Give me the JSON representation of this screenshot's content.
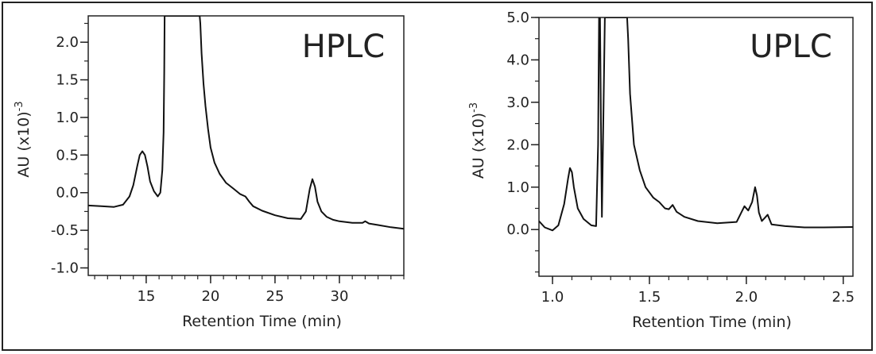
{
  "chart_data": [
    {
      "type": "line",
      "title": "HPLC",
      "xlabel": "Retention Time  (min)",
      "ylabel": "AU (x10)",
      "ylabel_sup": "-3",
      "xlim": [
        10.5,
        35
      ],
      "ylim": [
        -1.1,
        2.35
      ],
      "xticks": [
        15,
        20,
        25,
        30
      ],
      "xtick_labels": [
        "15",
        "20",
        "25",
        "30"
      ],
      "x_minor_step": 1,
      "yticks": [
        -1.0,
        -0.5,
        0.0,
        0.5,
        1.0,
        1.5,
        2.0
      ],
      "ytick_labels": [
        "-1.0",
        "-0.5",
        "0.0",
        "0.5",
        "1.0",
        "1.5",
        "2.0"
      ],
      "y_minor_step": 0.25,
      "grid": false,
      "series": [
        {
          "color": "#111111",
          "x": [
            10.5,
            11.5,
            12.5,
            13.2,
            13.7,
            14.0,
            14.3,
            14.5,
            14.7,
            14.9,
            15.1,
            15.3,
            15.6,
            15.9,
            16.1,
            16.25,
            16.35,
            16.4,
            16.43,
            16.47,
            16.5,
            16.8,
            17.5,
            18.2,
            18.9,
            19.15,
            19.2,
            19.3,
            19.45,
            19.6,
            19.8,
            20.0,
            20.3,
            20.7,
            21.2,
            21.8,
            22.3,
            22.7,
            23.0,
            23.3,
            24.0,
            25.0,
            26.0,
            27.0,
            27.4,
            27.7,
            27.9,
            28.1,
            28.3,
            28.6,
            29.0,
            29.5,
            30.0,
            31.0,
            31.8,
            32.0,
            32.3,
            33.0,
            34.0,
            35.0
          ],
          "y": [
            -0.17,
            -0.18,
            -0.19,
            -0.16,
            -0.05,
            0.1,
            0.35,
            0.5,
            0.55,
            0.5,
            0.35,
            0.15,
            0.02,
            -0.05,
            0.0,
            0.3,
            0.8,
            1.6,
            2.35,
            2.35,
            2.35,
            2.35,
            2.35,
            2.35,
            2.35,
            2.35,
            2.25,
            1.85,
            1.45,
            1.15,
            0.85,
            0.6,
            0.4,
            0.25,
            0.13,
            0.05,
            -0.02,
            -0.05,
            -0.12,
            -0.18,
            -0.24,
            -0.3,
            -0.34,
            -0.35,
            -0.25,
            0.05,
            0.18,
            0.08,
            -0.12,
            -0.25,
            -0.32,
            -0.36,
            -0.38,
            -0.4,
            -0.4,
            -0.38,
            -0.41,
            -0.43,
            -0.46,
            -0.48
          ]
        }
      ]
    },
    {
      "type": "line",
      "title": "UPLC",
      "xlabel": "Retention Time  (min)",
      "ylabel": "AU (x10)",
      "ylabel_sup": "-3",
      "xlim": [
        0.93,
        2.55
      ],
      "ylim": [
        -1.1,
        5.0
      ],
      "xticks": [
        1.0,
        1.5,
        2.0,
        2.5
      ],
      "xtick_labels": [
        "1.0",
        "1.5",
        "2.0",
        "2.5"
      ],
      "x_minor_step": 0.1,
      "yticks": [
        0.0,
        1.0,
        2.0,
        3.0,
        4.0,
        5.0
      ],
      "ytick_labels": [
        "0.0",
        "1.0",
        "2.0",
        "3.0",
        "4.0",
        "5.0"
      ],
      "y_minor_step": 0.5,
      "grid": false,
      "series": [
        {
          "color": "#111111",
          "x": [
            0.93,
            0.96,
            1.0,
            1.03,
            1.06,
            1.08,
            1.09,
            1.1,
            1.11,
            1.13,
            1.16,
            1.2,
            1.225,
            1.235,
            1.24,
            1.245,
            1.25,
            1.255,
            1.27,
            1.3,
            1.35,
            1.385,
            1.39,
            1.4,
            1.42,
            1.45,
            1.48,
            1.52,
            1.55,
            1.58,
            1.6,
            1.62,
            1.64,
            1.68,
            1.75,
            1.85,
            1.95,
            1.99,
            2.01,
            2.03,
            2.045,
            2.055,
            2.065,
            2.08,
            2.1,
            2.11,
            2.13,
            2.2,
            2.3,
            2.4,
            2.55
          ],
          "y": [
            0.2,
            0.05,
            -0.02,
            0.1,
            0.6,
            1.2,
            1.45,
            1.35,
            1.0,
            0.5,
            0.25,
            0.1,
            0.08,
            2.0,
            5.0,
            5.0,
            2.5,
            0.3,
            5.0,
            5.0,
            5.0,
            5.0,
            4.5,
            3.2,
            2.0,
            1.4,
            1.0,
            0.75,
            0.65,
            0.5,
            0.48,
            0.58,
            0.42,
            0.3,
            0.2,
            0.15,
            0.18,
            0.55,
            0.45,
            0.65,
            1.0,
            0.8,
            0.4,
            0.2,
            0.3,
            0.35,
            0.12,
            0.08,
            0.05,
            0.05,
            0.06
          ]
        }
      ]
    }
  ]
}
